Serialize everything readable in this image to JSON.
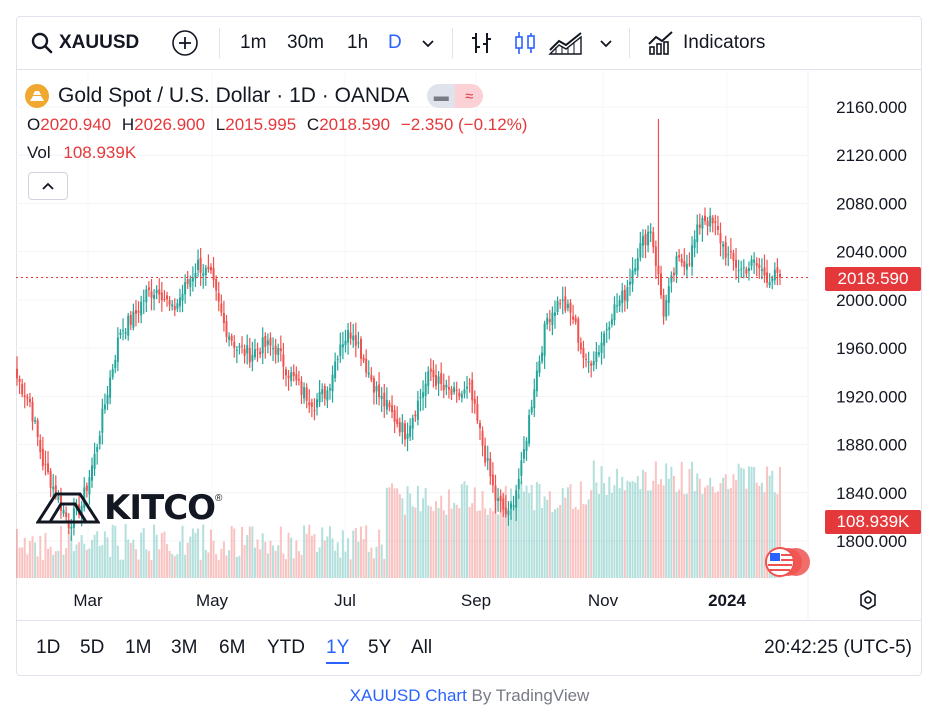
{
  "toolbar": {
    "symbol": "XAUUSD",
    "intervals": [
      "1m",
      "30m",
      "1h",
      "D"
    ],
    "active_interval": "D",
    "indicators_label": "Indicators",
    "icons": [
      "search-icon",
      "plus-circle-icon",
      "chevron-down-icon",
      "bar-style-icon",
      "candle-style-icon",
      "area-style-icon",
      "chevron-down-icon",
      "indicators-icon"
    ]
  },
  "legend": {
    "title": "Gold Spot / U.S. Dollar · 1D · OANDA",
    "o_label": "O",
    "o": "2020.940",
    "h_label": "H",
    "h": "2026.900",
    "l_label": "L",
    "l": "2015.995",
    "c_label": "C",
    "c": "2018.590",
    "change": "−2.350 (−0.12%)",
    "vol_label": "Vol",
    "vol": "108.939K"
  },
  "price_tag": "2018.590",
  "volume_tag": "108.939K",
  "watermark": "KITCO",
  "ranges": [
    "1D",
    "5D",
    "1M",
    "3M",
    "6M",
    "YTD",
    "1Y",
    "5Y",
    "All"
  ],
  "active_range": "1Y",
  "clock": "20:42:25 (UTC-5)",
  "credit": {
    "link": "XAUUSD Chart",
    "by": " By TradingView"
  },
  "colors": {
    "up": "#26a69a",
    "down": "#ef5350",
    "accent": "#2962ff",
    "last_price": "#e5383b"
  },
  "chart_data": {
    "type": "candlestick",
    "y_ticks": [
      "2160.000",
      "2120.000",
      "2080.000",
      "2040.000",
      "2000.000",
      "1960.000",
      "1920.000",
      "1880.000",
      "1840.000",
      "1800.000"
    ],
    "ylim": [
      1770,
      2175
    ],
    "x_ticks": [
      "Mar",
      "May",
      "Jul",
      "Sep",
      "Nov",
      "2024"
    ],
    "last_close": 2018.59,
    "close_path": [
      {
        "week": 0,
        "close": 1935
      },
      {
        "week": 1,
        "close": 1915
      },
      {
        "week": 2,
        "close": 1865
      },
      {
        "week": 3,
        "close": 1840
      },
      {
        "week": 4,
        "close": 1815
      },
      {
        "week": 5,
        "close": 1830
      },
      {
        "week": 6,
        "close": 1870
      },
      {
        "week": 7,
        "close": 1925
      },
      {
        "week": 8,
        "close": 1975
      },
      {
        "week": 9,
        "close": 1985
      },
      {
        "week": 10,
        "close": 2005
      },
      {
        "week": 11,
        "close": 2010
      },
      {
        "week": 12,
        "close": 1990
      },
      {
        "week": 13,
        "close": 2010
      },
      {
        "week": 14,
        "close": 2030
      },
      {
        "week": 15,
        "close": 2018
      },
      {
        "week": 16,
        "close": 1980
      },
      {
        "week": 17,
        "close": 1960
      },
      {
        "week": 18,
        "close": 1955
      },
      {
        "week": 19,
        "close": 1962
      },
      {
        "week": 20,
        "close": 1960
      },
      {
        "week": 21,
        "close": 1940
      },
      {
        "week": 22,
        "close": 1925
      },
      {
        "week": 23,
        "close": 1915
      },
      {
        "week": 24,
        "close": 1925
      },
      {
        "week": 25,
        "close": 1965
      },
      {
        "week": 26,
        "close": 1975
      },
      {
        "week": 27,
        "close": 1945
      },
      {
        "week": 28,
        "close": 1920
      },
      {
        "week": 29,
        "close": 1905
      },
      {
        "week": 30,
        "close": 1890
      },
      {
        "week": 31,
        "close": 1915
      },
      {
        "week": 32,
        "close": 1940
      },
      {
        "week": 33,
        "close": 1925
      },
      {
        "week": 34,
        "close": 1920
      },
      {
        "week": 35,
        "close": 1925
      },
      {
        "week": 36,
        "close": 1880
      },
      {
        "week": 37,
        "close": 1835
      },
      {
        "week": 38,
        "close": 1820
      },
      {
        "week": 39,
        "close": 1860
      },
      {
        "week": 40,
        "close": 1930
      },
      {
        "week": 41,
        "close": 1985
      },
      {
        "week": 42,
        "close": 2000
      },
      {
        "week": 43,
        "close": 1985
      },
      {
        "week": 44,
        "close": 1945
      },
      {
        "week": 45,
        "close": 1960
      },
      {
        "week": 46,
        "close": 1990
      },
      {
        "week": 47,
        "close": 2005
      },
      {
        "week": 48,
        "close": 2040
      },
      {
        "week": 49,
        "close": 2060
      },
      {
        "week": 50,
        "close": 1990
      },
      {
        "week": 51,
        "close": 2030
      },
      {
        "week": 52,
        "close": 2035
      },
      {
        "week": 53,
        "close": 2070
      },
      {
        "week": 54,
        "close": 2060
      },
      {
        "week": 55,
        "close": 2035
      },
      {
        "week": 56,
        "close": 2025
      },
      {
        "week": 57,
        "close": 2030
      },
      {
        "week": 58,
        "close": 2020
      },
      {
        "week": 59,
        "close": 2018.59
      }
    ],
    "spike_high": 2150
  }
}
